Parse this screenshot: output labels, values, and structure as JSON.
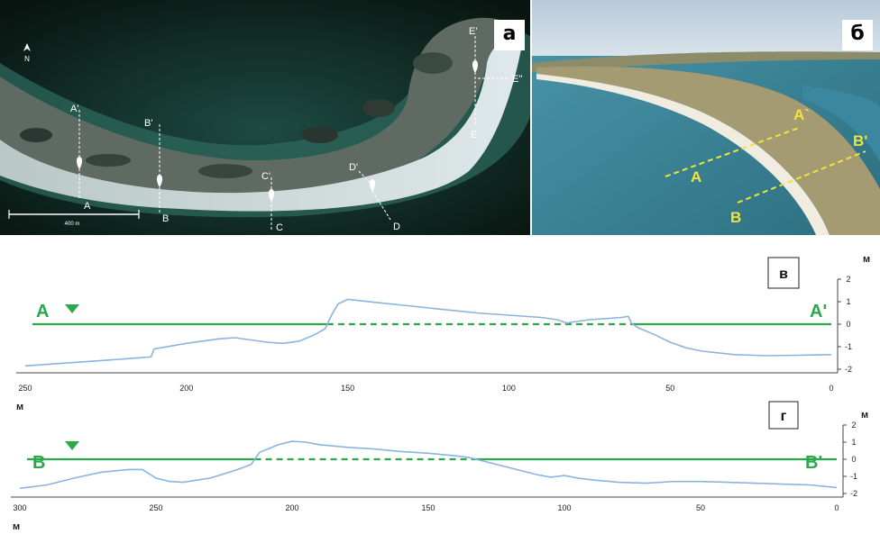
{
  "panel_a": {
    "badge": "a",
    "north": "N",
    "scale": "400 m",
    "markers": [
      {
        "top": "A'",
        "bottom": "A"
      },
      {
        "top": "B'",
        "bottom": "B"
      },
      {
        "top": "C'",
        "bottom": "C"
      },
      {
        "top": "D'",
        "bottom": "D"
      },
      {
        "top": "E'",
        "bottom": "E",
        "side": "E''"
      }
    ]
  },
  "panel_b": {
    "badge": "б",
    "labels": [
      "A",
      "A`",
      "B",
      "B'"
    ],
    "line_color": "#f0e33a"
  },
  "chart_data": [
    {
      "type": "line",
      "badge": "в",
      "profile_start": "A",
      "profile_end": "A'",
      "x_unit": "м",
      "y_unit": "м",
      "xlim": [
        250,
        0
      ],
      "ylim": [
        -2,
        2
      ],
      "x_ticks": [
        250,
        200,
        150,
        100,
        50,
        0
      ],
      "y_ticks": [
        2,
        1,
        0,
        -1,
        -2
      ],
      "sea_level": 0,
      "profile_color": "#8ab4e0",
      "level_color": "#2aa84a",
      "x": [
        250,
        240,
        230,
        220,
        211,
        210,
        200,
        190,
        185,
        180,
        175,
        170,
        165,
        160,
        157,
        155,
        153,
        150,
        140,
        130,
        120,
        110,
        100,
        90,
        85,
        82,
        80,
        75,
        70,
        65,
        63,
        62,
        60,
        55,
        50,
        45,
        40,
        30,
        20,
        10,
        0
      ],
      "y": [
        -1.85,
        -1.75,
        -1.65,
        -1.55,
        -1.45,
        -1.1,
        -0.85,
        -0.65,
        -0.6,
        -0.7,
        -0.8,
        -0.85,
        -0.75,
        -0.45,
        -0.2,
        0.4,
        0.9,
        1.1,
        0.95,
        0.8,
        0.65,
        0.5,
        0.4,
        0.3,
        0.2,
        0.05,
        0.1,
        0.2,
        0.25,
        0.3,
        0.35,
        0.05,
        -0.15,
        -0.45,
        -0.8,
        -1.05,
        -1.2,
        -1.35,
        -1.4,
        -1.38,
        -1.35
      ]
    },
    {
      "type": "line",
      "badge": "г",
      "profile_start": "B",
      "profile_end": "B'",
      "x_unit": "м",
      "y_unit": "м",
      "xlim": [
        300,
        0
      ],
      "ylim": [
        -2,
        2
      ],
      "x_ticks": [
        300,
        250,
        200,
        150,
        100,
        50,
        0
      ],
      "y_ticks": [
        2,
        1,
        0,
        -1,
        -2
      ],
      "sea_level": 0,
      "profile_color": "#8ab4e0",
      "level_color": "#2aa84a",
      "x": [
        300,
        290,
        280,
        270,
        260,
        255,
        250,
        245,
        240,
        230,
        220,
        215,
        212,
        205,
        200,
        195,
        190,
        180,
        170,
        160,
        150,
        140,
        135,
        130,
        120,
        110,
        105,
        100,
        95,
        90,
        80,
        70,
        60,
        50,
        40,
        30,
        20,
        10,
        0
      ],
      "y": [
        -1.7,
        -1.5,
        -1.1,
        -0.75,
        -0.6,
        -0.6,
        -1.1,
        -1.3,
        -1.35,
        -1.1,
        -0.6,
        -0.3,
        0.4,
        0.85,
        1.05,
        1.0,
        0.85,
        0.7,
        0.6,
        0.45,
        0.35,
        0.2,
        0.1,
        -0.1,
        -0.5,
        -0.9,
        -1.05,
        -0.95,
        -1.1,
        -1.2,
        -1.35,
        -1.4,
        -1.3,
        -1.3,
        -1.35,
        -1.4,
        -1.45,
        -1.5,
        -1.65
      ]
    }
  ]
}
